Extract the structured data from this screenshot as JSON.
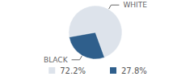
{
  "chart_data": {
    "type": "pie",
    "categories": [
      "WHITE",
      "BLACK"
    ],
    "values": [
      72.2,
      27.8
    ],
    "value_labels": [
      "72.2%",
      "27.8%"
    ],
    "colors": [
      "#dde3eb",
      "#2f5f8c"
    ],
    "legend": "bottom"
  }
}
